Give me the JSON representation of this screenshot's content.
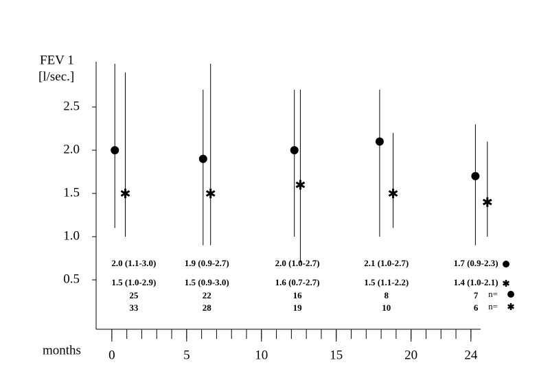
{
  "chart_data": {
    "type": "range-dot",
    "y_label": [
      "FEV 1",
      "[l/sec.]"
    ],
    "x_label": "months",
    "ylim": [
      0,
      3
    ],
    "yticks": [
      0.5,
      {
        "value": 1,
        "label": "1.0"
      },
      1.5,
      {
        "value": 2,
        "label": "2.0"
      },
      2.5
    ],
    "xlim": [
      -1.05,
      24.65
    ],
    "xticks": [
      0,
      5,
      10,
      15,
      20,
      24
    ],
    "xminorticks": [
      0,
      1,
      2,
      3,
      4,
      5,
      6,
      7,
      8,
      9,
      10,
      11,
      12,
      13,
      14,
      15,
      16,
      17,
      18,
      19,
      20,
      21,
      22,
      23,
      24
    ],
    "n_label": "n=",
    "series": [
      {
        "marker": "dot",
        "color": "#000000",
        "x": [
          0.2,
          6.1,
          12.2,
          17.9,
          24.3
        ],
        "values": [
          2.0,
          1.9,
          2.0,
          2.1,
          1.7
        ],
        "low": [
          1.1,
          0.9,
          1.0,
          1.0,
          0.9
        ],
        "high": [
          3.0,
          2.7,
          2.7,
          2.7,
          2.3
        ],
        "value_labels": [
          "2.0 (1.1-3.0)",
          "1.9 (0.9-2.7)",
          "2.0 (1.0-2.7)",
          "2.1 (1.0-2.7)",
          "1.7 (0.9-2.3)"
        ],
        "n": [
          25,
          22,
          16,
          8,
          7
        ]
      },
      {
        "marker": "asterisk",
        "color": "#000000",
        "x": [
          0.9,
          6.6,
          12.6,
          18.8,
          25.1
        ],
        "values": [
          1.5,
          1.5,
          1.6,
          1.5,
          1.4
        ],
        "low": [
          1.0,
          0.9,
          0.7,
          1.1,
          1.0
        ],
        "high": [
          2.9,
          3.0,
          2.7,
          2.2,
          2.1
        ],
        "value_labels": [
          "1.5 (1.0-2.9)",
          "1.5 (0.9-3.0)",
          "1.6 (0.7-2.7)",
          "1.5 (1.1-2.2)",
          "1.4 (1.0-2.1)"
        ],
        "n": [
          33,
          28,
          19,
          10,
          6
        ]
      }
    ]
  }
}
